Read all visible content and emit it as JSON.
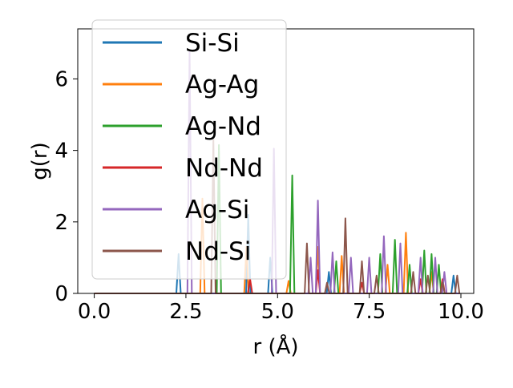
{
  "chart_data": {
    "type": "line",
    "title": "",
    "xlabel": "r (Å)",
    "ylabel": "g(r)",
    "xlim": [
      -0.45,
      10.35
    ],
    "ylim": [
      0,
      7.4
    ],
    "xticks": [
      0.0,
      2.5,
      5.0,
      7.5,
      10.0
    ],
    "xtick_labels": [
      "0.0",
      "2.5",
      "5.0",
      "7.5",
      "10.0"
    ],
    "yticks": [
      0,
      2,
      4,
      6
    ],
    "ytick_labels": [
      "0",
      "2",
      "4",
      "6"
    ],
    "grid": false,
    "legend_position": "upper-left",
    "series": [
      {
        "name": "Si-Si",
        "color": "#1f77b4",
        "peaks": [
          [
            2.3,
            1.1
          ],
          [
            4.2,
            2.2
          ],
          [
            4.8,
            1.0
          ],
          [
            6.4,
            0.6
          ],
          [
            9.8,
            0.5
          ]
        ]
      },
      {
        "name": "Ag-Ag",
        "color": "#ff7f0e",
        "peaks": [
          [
            2.95,
            2.65
          ],
          [
            4.15,
            1.3
          ],
          [
            5.3,
            0.35
          ],
          [
            6.1,
            1.3
          ],
          [
            6.75,
            1.05
          ],
          [
            8.0,
            0.8
          ],
          [
            8.5,
            1.7
          ],
          [
            9.2,
            0.6
          ]
        ]
      },
      {
        "name": "Ag-Nd",
        "color": "#2ca02c",
        "peaks": [
          [
            3.4,
            4.15
          ],
          [
            5.4,
            3.3
          ],
          [
            6.6,
            0.9
          ],
          [
            7.8,
            1.1
          ],
          [
            8.2,
            1.5
          ],
          [
            8.6,
            0.8
          ],
          [
            9.0,
            1.2
          ],
          [
            9.2,
            1.1
          ],
          [
            9.4,
            0.8
          ]
        ]
      },
      {
        "name": "Nd-Nd",
        "color": "#d62728",
        "peaks": [
          [
            4.25,
            0.4
          ],
          [
            6.1,
            0.65
          ],
          [
            7.3,
            0.3
          ],
          [
            8.9,
            0.4
          ],
          [
            9.5,
            0.4
          ]
        ]
      },
      {
        "name": "Ag-Si",
        "color": "#9467bd",
        "peaks": [
          [
            2.6,
            6.8
          ],
          [
            4.9,
            4.05
          ],
          [
            5.9,
            1.0
          ],
          [
            6.1,
            2.6
          ],
          [
            6.5,
            1.15
          ],
          [
            7.0,
            1.0
          ],
          [
            7.5,
            1.0
          ],
          [
            7.9,
            1.6
          ],
          [
            8.35,
            1.4
          ],
          [
            8.9,
            1.0
          ],
          [
            9.3,
            1.0
          ],
          [
            9.55,
            0.6
          ]
        ]
      },
      {
        "name": "Nd-Si",
        "color": "#8c564b",
        "peaks": [
          [
            3.25,
            4.3
          ],
          [
            5.8,
            1.4
          ],
          [
            6.35,
            0.3
          ],
          [
            6.85,
            2.1
          ],
          [
            7.3,
            0.9
          ],
          [
            7.7,
            0.5
          ],
          [
            8.7,
            0.6
          ],
          [
            9.1,
            0.5
          ],
          [
            9.5,
            0.3
          ],
          [
            9.9,
            0.5
          ]
        ]
      }
    ]
  }
}
